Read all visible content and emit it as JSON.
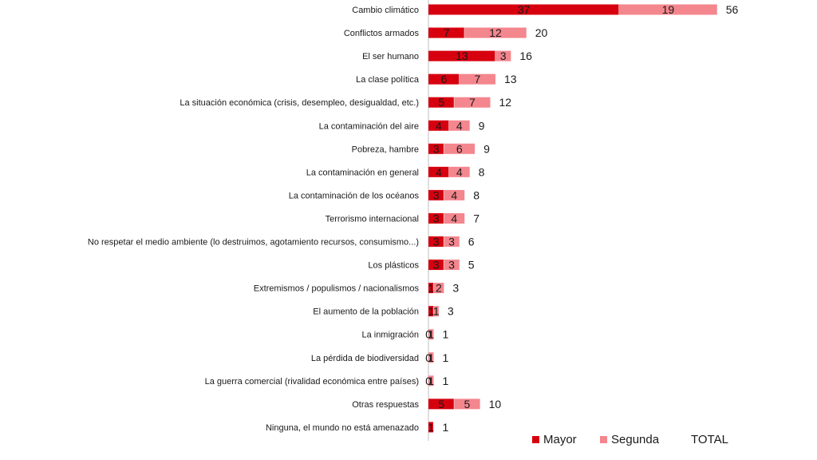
{
  "chart_data": {
    "type": "bar",
    "orientation": "horizontal",
    "stacked": true,
    "categories": [
      "Cambio climático",
      "Conflictos armados",
      "El ser humano",
      "La clase política",
      "La situación económica (crisis, desempleo, desigualdad, etc.)",
      "La contaminación del aire",
      "Pobreza, hambre",
      "La contaminación en general",
      "La contaminación de los océanos",
      "Terrorismo internacional",
      "No respetar el medio ambiente (lo destruimos, agotamiento recursos, consumismo...)",
      "Los plásticos",
      "Extremismos / populismos / nacionalismos",
      "El aumento de la población",
      "La inmigración",
      "La pérdida de biodiversidad",
      "La guerra comercial (rivalidad económica entre países)",
      "Otras respuestas",
      "Ninguna, el mundo no está amenazado"
    ],
    "series": [
      {
        "name": "Mayor",
        "color": "#d7000f",
        "values": [
          37,
          7,
          13,
          6,
          5,
          4,
          3,
          4,
          3,
          3,
          3,
          3,
          1,
          1,
          0,
          0,
          0,
          5,
          1
        ]
      },
      {
        "name": "Segunda",
        "color": "#f4868e",
        "values": [
          19,
          12,
          3,
          7,
          7,
          4,
          6,
          4,
          4,
          4,
          3,
          3,
          2,
          1,
          1,
          1,
          1,
          5,
          0
        ]
      },
      {
        "name": "TOTAL",
        "values": [
          56,
          20,
          16,
          13,
          12,
          9,
          9,
          8,
          8,
          7,
          6,
          5,
          3,
          3,
          1,
          1,
          1,
          10,
          1
        ]
      }
    ],
    "legend_position": "bottom-right",
    "grid": false,
    "xlim": [
      0,
      56
    ]
  }
}
